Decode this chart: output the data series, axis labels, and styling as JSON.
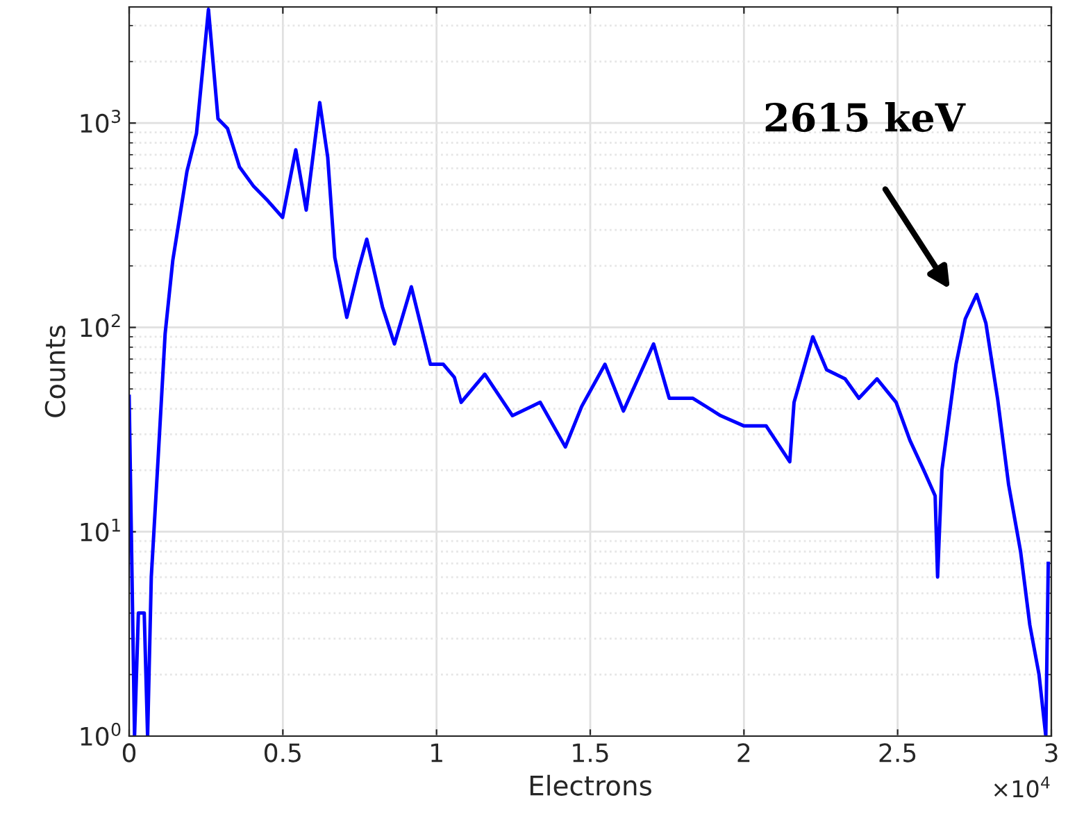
{
  "chart_data": {
    "type": "line",
    "xlabel": "Electrons",
    "ylabel": "Counts",
    "log": "y",
    "grid": true,
    "marker": "none",
    "line_style": "solid",
    "xlim": [
      0,
      3
    ],
    "xticks": [
      0,
      0.5,
      1,
      1.5,
      2,
      2.5,
      3
    ],
    "ylim": [
      1,
      3700
    ],
    "yticks": [
      {
        "value": 1,
        "label": "10$^{0}$"
      },
      {
        "value": 10,
        "label": "10$^{1}$"
      },
      {
        "value": 100,
        "label": "10$^{2}$"
      },
      {
        "value": 1000,
        "label": "10$^{3}$"
      }
    ],
    "annotations": [
      "2615 keV",
      "×10$^{4}$"
    ],
    "series": [
      {
        "color": "#0000ff",
        "x": [
          0,
          0.0175,
          0.03,
          0.049,
          0.06,
          0.072,
          0.095,
          0.117,
          0.142,
          0.188,
          0.219,
          0.258,
          0.289,
          0.32,
          0.359,
          0.405,
          0.452,
          0.499,
          0.542,
          0.576,
          0.62,
          0.646,
          0.669,
          0.708,
          0.747,
          0.773,
          0.824,
          0.863,
          0.918,
          0.98,
          1.022,
          1.058,
          1.08,
          1.157,
          1.247,
          1.337,
          1.419,
          1.472,
          1.548,
          1.608,
          1.706,
          1.757,
          1.834,
          1.924,
          1.999,
          2.072,
          2.149,
          2.163,
          2.224,
          2.269,
          2.329,
          2.374,
          2.433,
          2.495,
          2.54,
          2.585,
          2.622,
          2.63,
          2.644,
          2.69,
          2.72,
          2.757,
          2.787,
          2.825,
          2.861,
          2.9,
          2.93,
          2.96,
          2.982,
          2.99
        ],
        "values": [
          46,
          1,
          4,
          4,
          1,
          6,
          24,
          93,
          213,
          580,
          890,
          3600,
          1050,
          940,
          610,
          490,
          415,
          345,
          740,
          375,
          1260,
          680,
          220,
          112,
          195,
          270,
          126,
          83,
          158,
          66,
          66,
          57,
          43,
          59,
          37,
          43,
          26,
          41,
          66,
          39,
          83,
          45,
          45,
          37,
          33,
          33,
          22,
          43,
          90,
          62,
          56,
          45,
          56,
          43,
          28,
          20,
          15,
          6,
          20,
          66,
          110,
          145,
          105,
          45,
          17,
          8,
          3.5,
          2,
          1,
          7
        ]
      }
    ]
  }
}
